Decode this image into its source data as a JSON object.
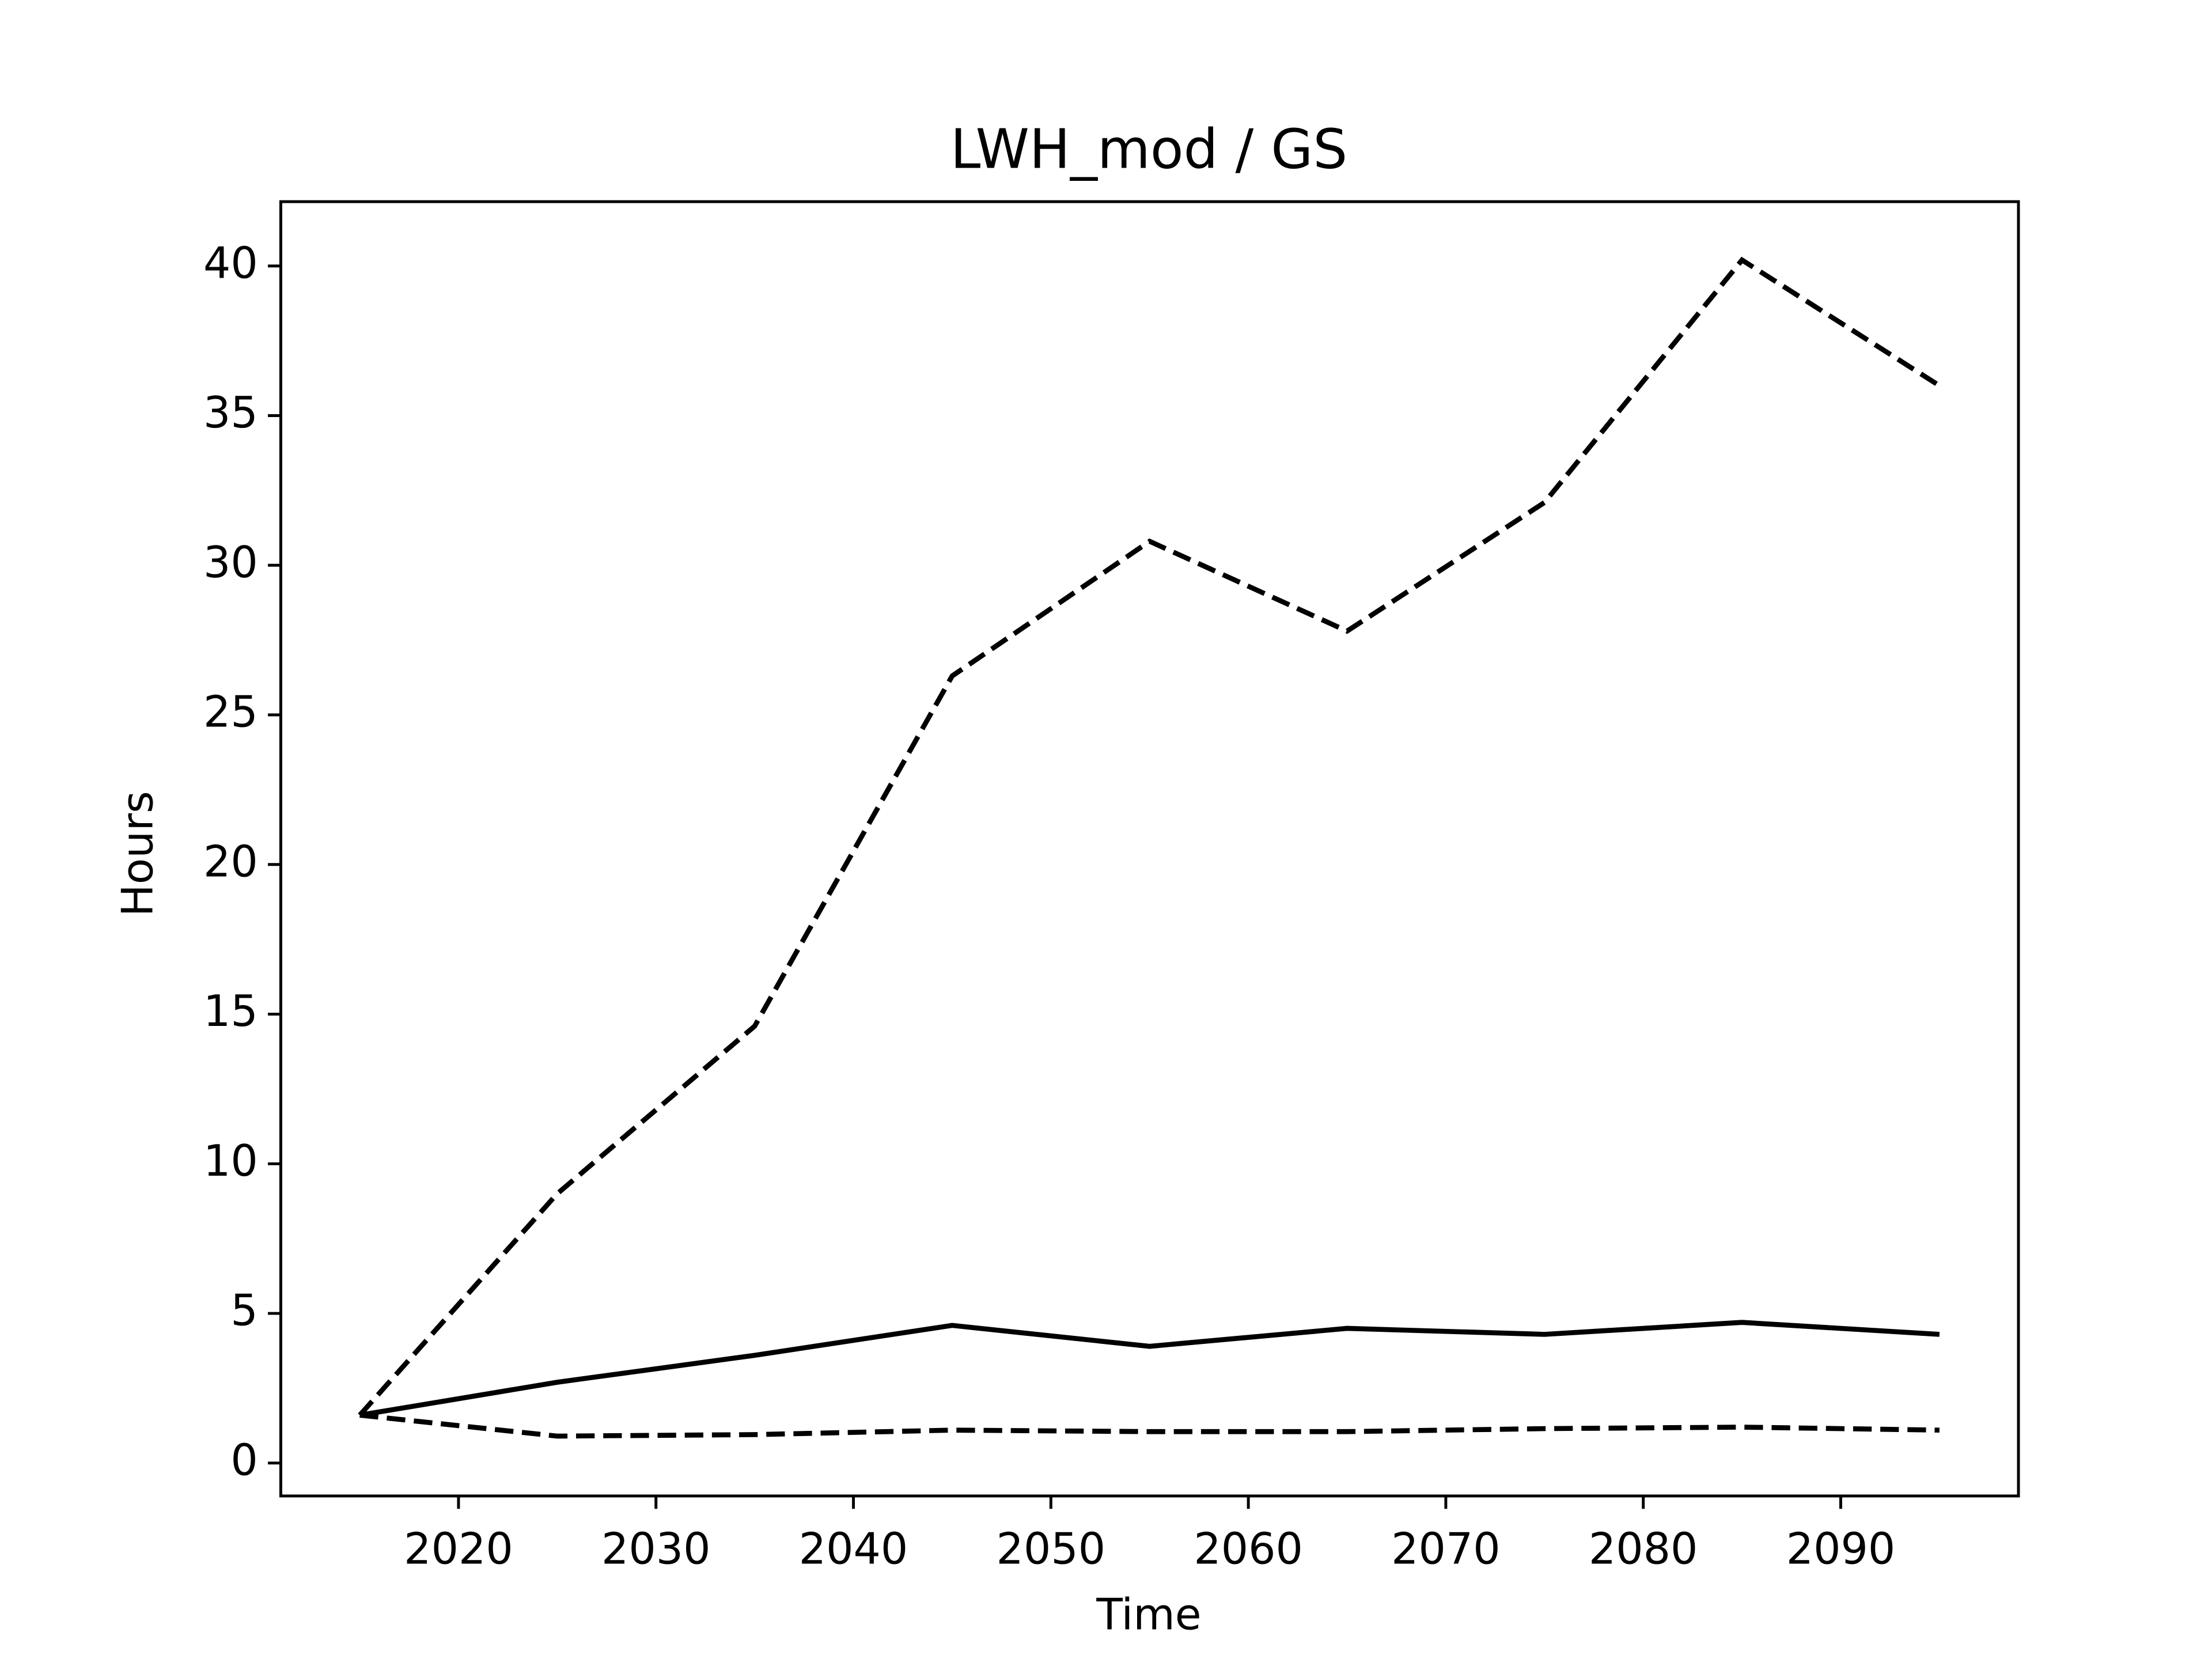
{
  "chart_data": {
    "type": "line",
    "title": "LWH_mod / GS",
    "x_label": "Time",
    "y_label": "Hours",
    "x": [
      2015,
      2025,
      2035,
      2045,
      2055,
      2065,
      2075,
      2085,
      2095
    ],
    "series": [
      {
        "color": "#000000",
        "linestyle": "dashed",
        "values": [
          1.6,
          9.0,
          14.6,
          26.3,
          30.8,
          27.8,
          32.1,
          40.2,
          36.0
        ]
      },
      {
        "color": "#000000",
        "linestyle": "solid",
        "values": [
          1.6,
          2.7,
          3.6,
          4.6,
          3.9,
          4.5,
          4.3,
          4.7,
          4.3
        ]
      },
      {
        "color": "#000000",
        "linestyle": "dashed",
        "values": [
          1.6,
          0.9,
          0.95,
          1.1,
          1.05,
          1.05,
          1.15,
          1.2,
          1.1
        ]
      }
    ],
    "xlim": [
      2011,
      2099
    ],
    "xticks": [
      2020,
      2030,
      2040,
      2050,
      2060,
      2070,
      2080,
      2090
    ],
    "ylim": [
      -1.1,
      42.15
    ],
    "yticks": [
      0,
      5,
      10,
      15,
      20,
      25,
      30,
      35,
      40
    ],
    "grid": false
  }
}
